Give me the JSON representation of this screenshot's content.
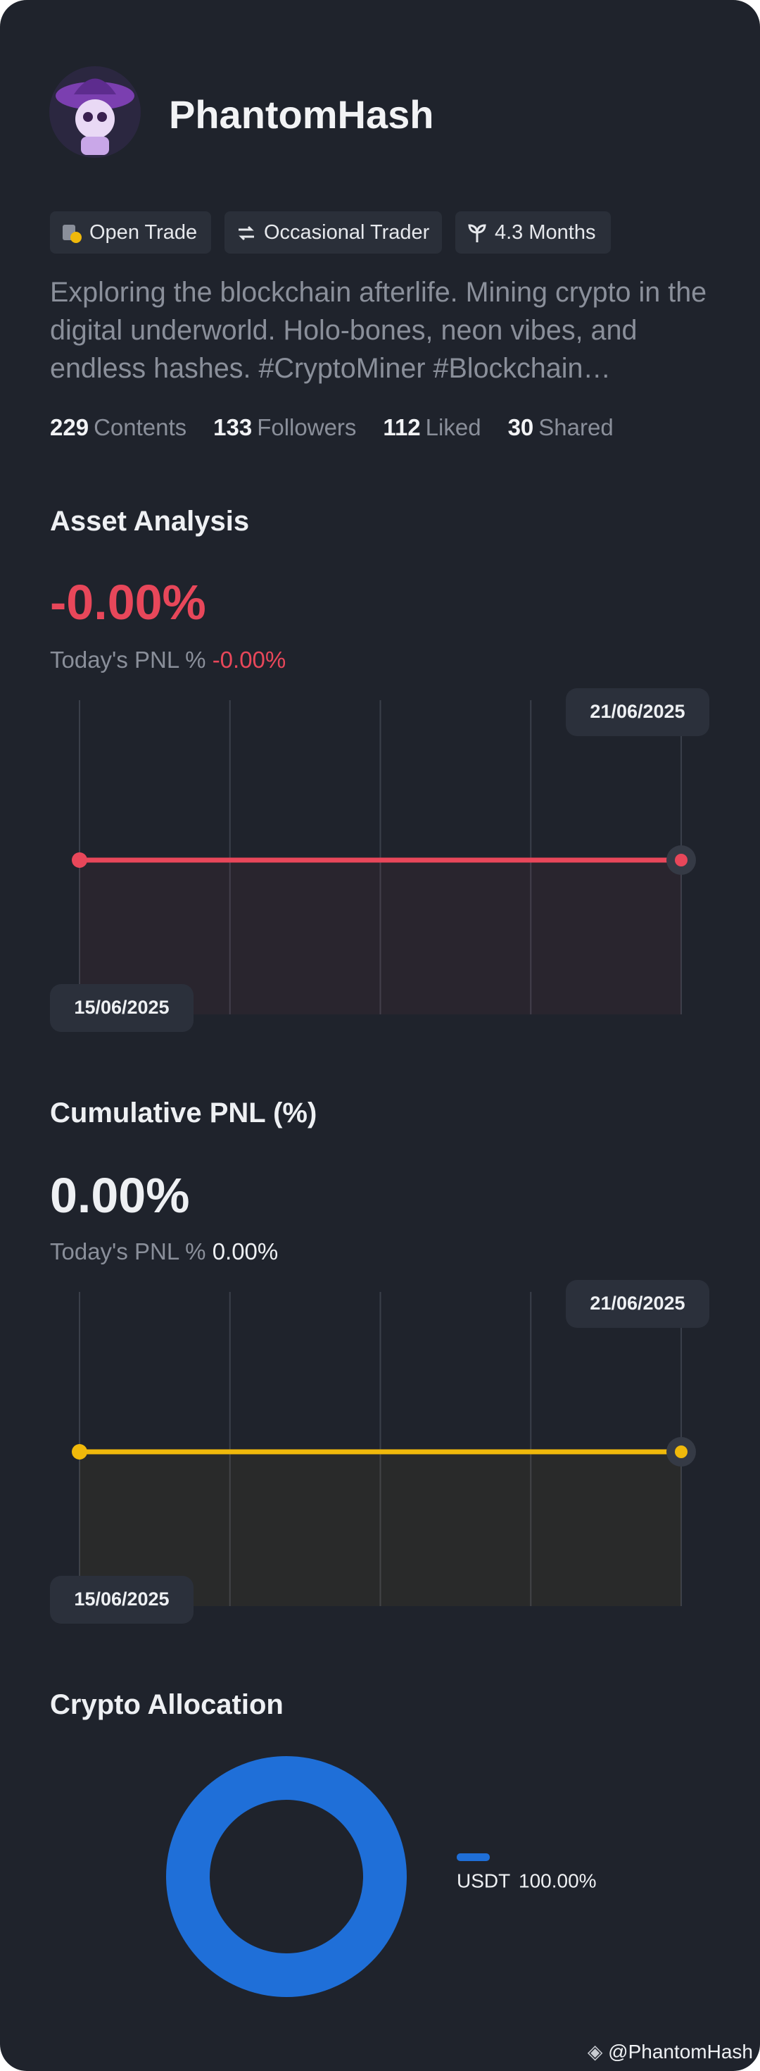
{
  "profile": {
    "name": "PhantomHash",
    "tags": [
      "Open Trade",
      "Occasional Trader",
      "4.3 Months"
    ],
    "bio": "Exploring the blockchain afterlife. Mining crypto in the digital underworld. Holo-bones, neon vibes, and endless hashes. #CryptoMiner #Blockchain…"
  },
  "stats": [
    {
      "value": 229,
      "label": "Contents"
    },
    {
      "value": 133,
      "label": "Followers"
    },
    {
      "value": 112,
      "label": "Liked"
    },
    {
      "value": 30,
      "label": "Shared"
    }
  ],
  "asset_analysis": {
    "title": "Asset Analysis",
    "value_text": "-0.00%",
    "pnl_label": "Today's PNL %",
    "pnl_value": "-0.00%",
    "x": [
      "15/06/2025",
      "21/06/2025"
    ],
    "values": [
      0,
      0
    ],
    "color": "#e8475a"
  },
  "cumulative_pnl": {
    "title": "Cumulative PNL (%)",
    "value_text": "0.00%",
    "pnl_label": "Today's PNL %",
    "pnl_value": "0.00%",
    "x": [
      "15/06/2025",
      "21/06/2025"
    ],
    "values": [
      0,
      0
    ],
    "color": "#f0b90b"
  },
  "crypto_allocation": {
    "title": "Crypto Allocation",
    "type": "pie",
    "categories": [
      "USDT"
    ],
    "values": [
      100
    ],
    "value_labels": [
      "100.00%"
    ],
    "colors": [
      "#1f6fd8"
    ]
  },
  "watermark": "@PhantomHash"
}
